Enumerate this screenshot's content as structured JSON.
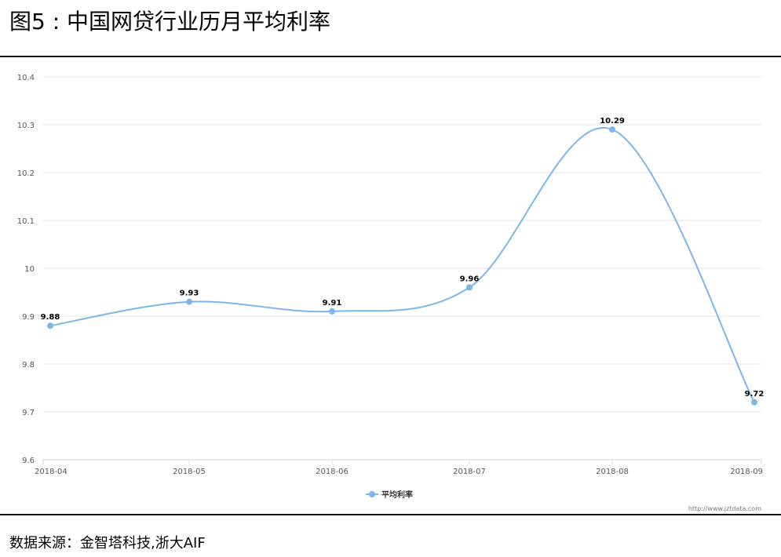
{
  "figure_title": "图5 : 中国网贷行业历月平均利率",
  "source_text": "数据来源：金智塔科技,浙大AIF",
  "watermark": "http://www.jztdata.com",
  "colors": {
    "series": "#7cb5ec",
    "grid": "#e6e6e6",
    "axis": "#ccd6eb"
  },
  "chart_data": {
    "type": "line",
    "smooth": true,
    "title": "",
    "xlabel": "",
    "ylabel": "",
    "categories": [
      "2018-04",
      "2018-05",
      "2018-06",
      "2018-07",
      "2018-08",
      "2018-09"
    ],
    "series": [
      {
        "name": "平均利率",
        "values": [
          9.88,
          9.93,
          9.91,
          9.96,
          10.29,
          9.72
        ]
      }
    ],
    "data_labels": [
      "9.88",
      "9.93",
      "9.91",
      "9.96",
      "10.29",
      "9.72"
    ],
    "ylim": [
      9.6,
      10.4
    ],
    "yticks": [
      9.6,
      9.7,
      9.8,
      9.9,
      10,
      10.1,
      10.2,
      10.3,
      10.4
    ],
    "ytick_labels": [
      "9.6",
      "9.7",
      "9.8",
      "9.9",
      "10",
      "10.1",
      "10.2",
      "10.3",
      "10.4"
    ],
    "grid": true,
    "legend_position": "bottom-center"
  }
}
